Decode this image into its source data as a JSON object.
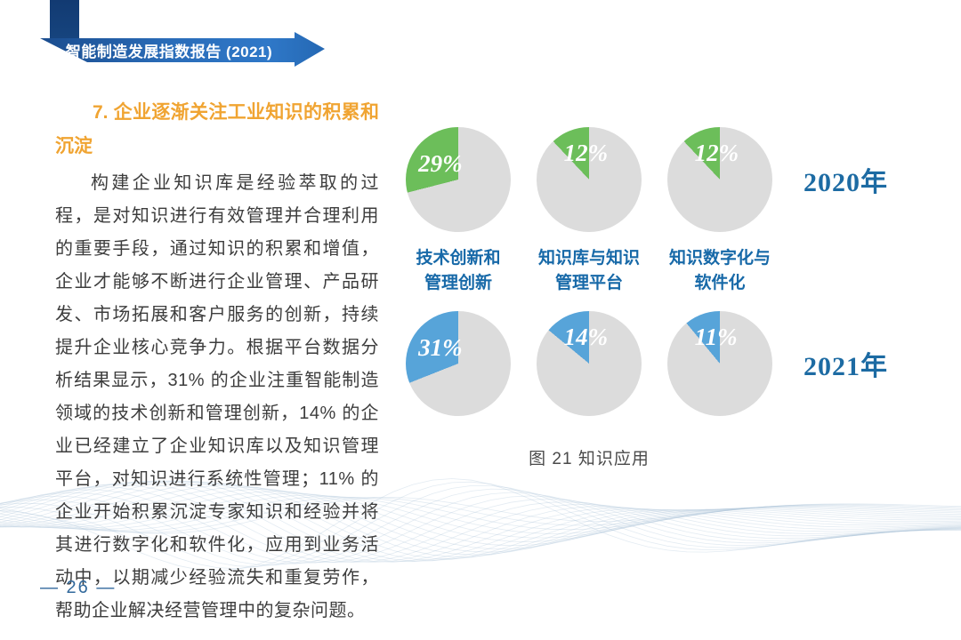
{
  "banner": {
    "title": "智能制造发展指数报告 (2021)"
  },
  "section": {
    "heading": "7. 企业逐渐关注工业知识的积累和沉淀",
    "body": "构建企业知识库是经验萃取的过程，是对知识进行有效管理并合理利用的重要手段，通过知识的积累和增值，企业才能够不断进行企业管理、产品研发、市场拓展和客户服务的创新，持续提升企业核心竞争力。根据平台数据分析结果显示，31% 的企业注重智能制造领域的技术创新和管理创新，14% 的企业已经建立了企业知识库以及知识管理平台，对知识进行系统性管理；11% 的企业开始积累沉淀专家知识和经验并将其进行数字化和软件化，应用到业务活动中，以期减少经验流失和重复劳作，帮助企业解决经营管理中的复杂问题。"
  },
  "chart_data": {
    "type": "pie",
    "title": "图 21 知识应用",
    "layout": "2 rows (years) x 3 columns (categories), each pie shows one percentage vs remainder",
    "categories": [
      "技术创新和管理创新",
      "知识库与知识管理平台",
      "知识数字化与软件化"
    ],
    "categories_lines": [
      [
        "技术创新和",
        "管理创新"
      ],
      [
        "知识库与知识",
        "管理平台"
      ],
      [
        "知识数字化与",
        "软件化"
      ]
    ],
    "series": [
      {
        "name": "2020年",
        "values": [
          29,
          12,
          12
        ],
        "color": "#6cbe5a"
      },
      {
        "name": "2021年",
        "values": [
          31,
          14,
          11
        ],
        "color": "#57a4d9"
      }
    ],
    "remainder_color": "#dcdcdc",
    "label_format": "percent",
    "slice_direction": "counterclockwise from 12 o'clock"
  },
  "figure": {
    "caption": "图 21 知识应用"
  },
  "footer": {
    "page_number": "26",
    "page_number_label": "— 26 —"
  },
  "colors": {
    "banner_bar": "#16457f",
    "banner_ribbon": "#2a6cb8",
    "heading_orange": "#f0a432",
    "body_text": "#3d3d3d",
    "category_label_blue": "#1769a8",
    "year_label_blue": "#1d6ba3",
    "pie_green_2020": "#6cbe5a",
    "pie_blue_2021": "#57a4d9",
    "pie_gray": "#dcdcdc",
    "page_number_blue": "#32699c"
  }
}
